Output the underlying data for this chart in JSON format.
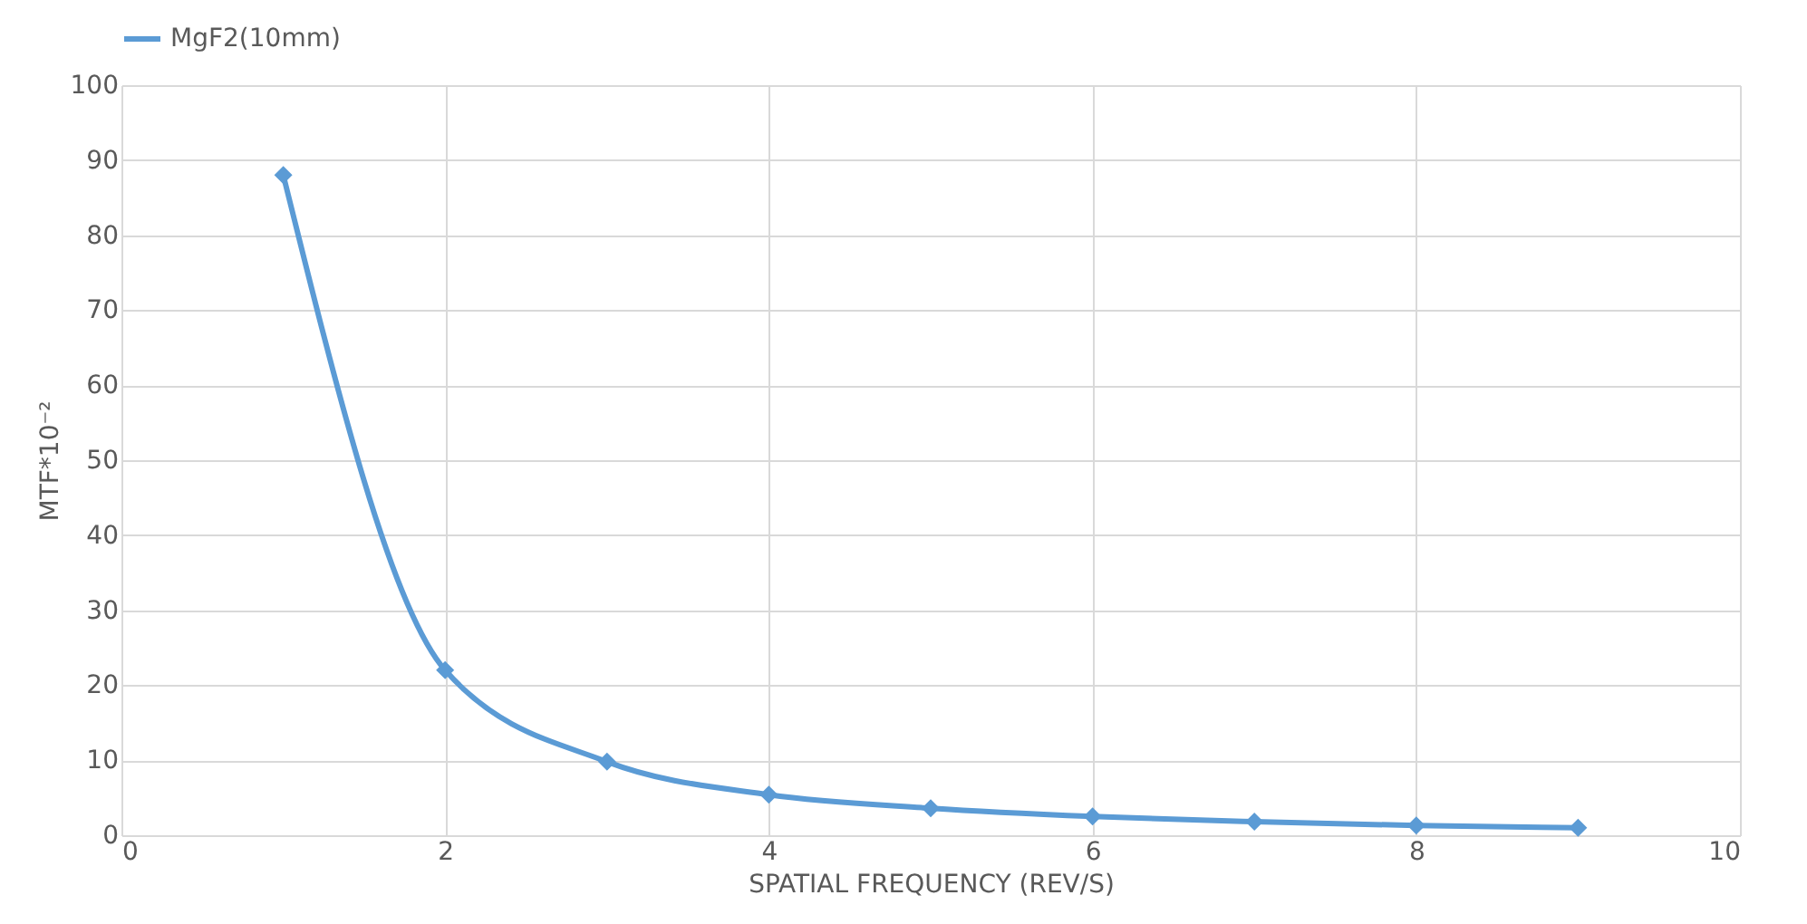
{
  "chart_data": {
    "type": "line",
    "xlabel": "SPATIAL FREQUENCY (REV/S)",
    "ylabel": "MTF*10⁻²",
    "x": [
      1,
      2,
      3,
      4,
      5,
      6,
      7,
      8,
      9
    ],
    "series": [
      {
        "name": "MgF2(10mm)",
        "color": "#5b9bd5",
        "values": [
          88,
          22,
          9.8,
          5.4,
          3.6,
          2.5,
          1.8,
          1.3,
          1.0
        ]
      }
    ],
    "xlim": [
      0,
      10
    ],
    "xticks": [
      0,
      2,
      4,
      6,
      8,
      10
    ],
    "ylim": [
      0,
      100
    ],
    "yticks": [
      0,
      10,
      20,
      30,
      40,
      50,
      60,
      70,
      80,
      90,
      100
    ],
    "grid": true,
    "legend": "top",
    "marker": "diamond",
    "line_style": "solid"
  }
}
